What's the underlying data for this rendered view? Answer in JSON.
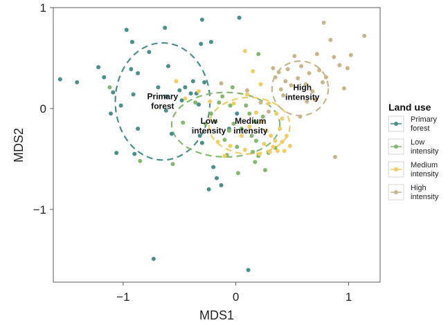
{
  "chart_data": {
    "type": "scatter",
    "xlabel": "MDS1",
    "ylabel": "MDS2",
    "xlim": [
      -1.62,
      1.28
    ],
    "ylim": [
      -1.72,
      1.0
    ],
    "x_ticks": [
      -1,
      0,
      1
    ],
    "y_ticks": [
      -1,
      0,
      1
    ],
    "x_tick_labels": [
      "−1",
      "0",
      "1"
    ],
    "y_tick_labels": [
      "−1",
      "0",
      "1"
    ],
    "grid": false,
    "legend": {
      "title": "Land use",
      "position": "right",
      "entries": [
        {
          "series": 0,
          "lines": [
            "Primary",
            "forest"
          ]
        },
        {
          "series": 1,
          "lines": [
            "Low",
            "intensity"
          ]
        },
        {
          "series": 2,
          "lines": [
            "Medium",
            "intensity"
          ]
        },
        {
          "series": 3,
          "lines": [
            "High",
            "intensity"
          ]
        }
      ]
    },
    "series": [
      {
        "name": "Primary forest",
        "color": "#4b8f8c",
        "ellipse": {
          "cx": -0.65,
          "cy": 0.07,
          "rx": 0.42,
          "ry": 0.58
        },
        "label_lines": [
          "Primary",
          "forest"
        ],
        "label_at": [
          -0.65,
          0.07
        ],
        "points": [
          [
            -1.56,
            0.29
          ],
          [
            -1.41,
            0.26
          ],
          [
            -1.22,
            0.41
          ],
          [
            -1.17,
            0.31
          ],
          [
            -1.09,
            0.16
          ],
          [
            -1.02,
            0.03
          ],
          [
            -1.11,
            -0.05
          ],
          [
            -1.06,
            -0.44
          ],
          [
            -0.97,
            0.78
          ],
          [
            -0.92,
            0.66
          ],
          [
            -0.91,
            0.14
          ],
          [
            -0.93,
            0.39
          ],
          [
            -0.87,
            0.35
          ],
          [
            -0.9,
            -0.45
          ],
          [
            -0.87,
            -0.2
          ],
          [
            -0.77,
            0.56
          ],
          [
            -0.69,
            0.21
          ],
          [
            -0.62,
            0.12
          ],
          [
            -0.6,
            0.42
          ],
          [
            -0.62,
            -0.02
          ],
          [
            -0.57,
            -0.25
          ],
          [
            -0.5,
            0.18
          ],
          [
            -0.48,
            0.08
          ],
          [
            -0.45,
            0.21
          ],
          [
            -0.38,
            0.27
          ],
          [
            -0.4,
            0.15
          ],
          [
            -0.35,
            0.15
          ],
          [
            -0.33,
            0.04
          ],
          [
            -0.32,
            -0.27
          ],
          [
            -0.3,
            -0.34
          ],
          [
            -0.28,
            0.26
          ],
          [
            -0.31,
            0.64
          ],
          [
            -0.22,
            0.66
          ],
          [
            -0.3,
            0.88
          ],
          [
            -0.63,
            0.8
          ],
          [
            -0.2,
            -0.58
          ],
          [
            -0.17,
            -0.69
          ],
          [
            -0.13,
            -0.76
          ],
          [
            -0.24,
            -0.8
          ],
          [
            0.03,
            0.9
          ],
          [
            -0.73,
            -1.49
          ],
          [
            0.11,
            -1.6
          ],
          [
            0.01,
            -0.05
          ],
          [
            -0.06,
            -0.2
          ]
        ]
      },
      {
        "name": "Low intensity",
        "color": "#84b86f",
        "ellipse": {
          "cx": -0.09,
          "cy": -0.16,
          "rx": 0.48,
          "ry": 0.32
        },
        "label_lines": [
          "Low",
          "intensity"
        ],
        "label_at": [
          -0.24,
          -0.17
        ],
        "points": [
          [
            -1.12,
            0.21
          ],
          [
            -0.85,
            -0.52
          ],
          [
            -0.56,
            -0.55
          ],
          [
            -0.47,
            -0.14
          ],
          [
            -0.36,
            0.06
          ],
          [
            -0.27,
            -0.15
          ],
          [
            -0.22,
            -0.05
          ],
          [
            -0.18,
            -0.13
          ],
          [
            -0.15,
            0.06
          ],
          [
            -0.12,
            0.12
          ],
          [
            -0.1,
            -0.31
          ],
          [
            -0.08,
            -0.46
          ],
          [
            -0.06,
            -0.22
          ],
          [
            -0.05,
            0.03
          ],
          [
            -0.03,
            0.21
          ],
          [
            -0.02,
            -0.15
          ],
          [
            0.01,
            -0.38
          ],
          [
            0.02,
            -0.64
          ],
          [
            0.05,
            -0.2
          ],
          [
            0.09,
            0.03
          ],
          [
            0.12,
            -0.05
          ],
          [
            0.15,
            -0.43
          ],
          [
            0.18,
            -0.32
          ],
          [
            0.2,
            -0.47
          ],
          [
            0.17,
            -0.13
          ],
          [
            0.26,
            -0.61
          ],
          [
            0.2,
            0.54
          ],
          [
            0.29,
            -0.44
          ],
          [
            0.35,
            -0.39
          ],
          [
            0.24,
            -0.08
          ],
          [
            0.17,
            -0.53
          ],
          [
            0.14,
            -0.27
          ]
        ]
      },
      {
        "name": "Medium intensity",
        "color": "#f2cc66",
        "ellipse": {
          "cx": 0.12,
          "cy": -0.17,
          "rx": 0.36,
          "ry": 0.28
        },
        "label_lines": [
          "Medium",
          "intensity"
        ],
        "label_at": [
          0.13,
          -0.17
        ],
        "points": [
          [
            -0.53,
            0.27
          ],
          [
            -0.45,
            0.1
          ],
          [
            -0.33,
            0.17
          ],
          [
            -0.23,
            0.07
          ],
          [
            -0.16,
            -0.33
          ],
          [
            -0.1,
            -0.47
          ],
          [
            -0.05,
            -0.37
          ],
          [
            -0.02,
            0.05
          ],
          [
            0.05,
            -0.27
          ],
          [
            0.08,
            -0.41
          ],
          [
            0.1,
            0.14
          ],
          [
            0.12,
            -0.18
          ],
          [
            0.15,
            0.37
          ],
          [
            0.18,
            -0.04
          ],
          [
            0.22,
            0.24
          ],
          [
            0.23,
            -0.13
          ],
          [
            0.25,
            -0.35
          ],
          [
            0.27,
            -0.22
          ],
          [
            0.29,
            0.05
          ],
          [
            0.31,
            -0.27
          ],
          [
            0.33,
            -0.38
          ],
          [
            0.35,
            -0.32
          ],
          [
            0.37,
            -0.42
          ],
          [
            0.39,
            -0.2
          ],
          [
            0.41,
            -0.33
          ],
          [
            0.43,
            -0.42
          ],
          [
            0.45,
            -0.27
          ],
          [
            0.48,
            -0.37
          ],
          [
            0.3,
            -0.43
          ],
          [
            0.21,
            -0.45
          ],
          [
            0.36,
            -0.05
          ],
          [
            0.41,
            -0.1
          ],
          [
            0.08,
            0.57
          ]
        ]
      },
      {
        "name": "High intensity",
        "color": "#c8b58c",
        "ellipse": {
          "cx": 0.57,
          "cy": 0.2,
          "rx": 0.25,
          "ry": 0.27
        },
        "label_lines": [
          "High",
          "intensity"
        ],
        "label_at": [
          0.59,
          0.16
        ],
        "points": [
          [
            -0.13,
            0.25
          ],
          [
            0.1,
            0.18
          ],
          [
            0.22,
            0.06
          ],
          [
            0.29,
            -0.03
          ],
          [
            0.33,
            0.4
          ],
          [
            0.35,
            0.31
          ],
          [
            0.38,
            0.36
          ],
          [
            0.4,
            0.19
          ],
          [
            0.42,
            0.13
          ],
          [
            0.44,
            0.27
          ],
          [
            0.46,
            0.39
          ],
          [
            0.49,
            0.23
          ],
          [
            0.52,
            0.52
          ],
          [
            0.55,
            0.3
          ],
          [
            0.58,
            0.42
          ],
          [
            0.62,
            0.24
          ],
          [
            0.65,
            0.35
          ],
          [
            0.68,
            0.17
          ],
          [
            0.7,
            0.09
          ],
          [
            0.72,
            0.54
          ],
          [
            0.74,
            0.38
          ],
          [
            0.77,
            0.26
          ],
          [
            0.8,
            0.31
          ],
          [
            0.84,
            0.68
          ],
          [
            0.87,
            0.51
          ],
          [
            0.92,
            0.43
          ],
          [
            0.96,
            0.2
          ],
          [
            0.99,
            0.4
          ],
          [
            1.02,
            0.53
          ],
          [
            1.14,
            0.72
          ],
          [
            0.78,
            0.85
          ],
          [
            0.88,
            -0.48
          ],
          [
            0.57,
            -0.08
          ],
          [
            0.63,
            0.07
          ]
        ]
      }
    ]
  }
}
